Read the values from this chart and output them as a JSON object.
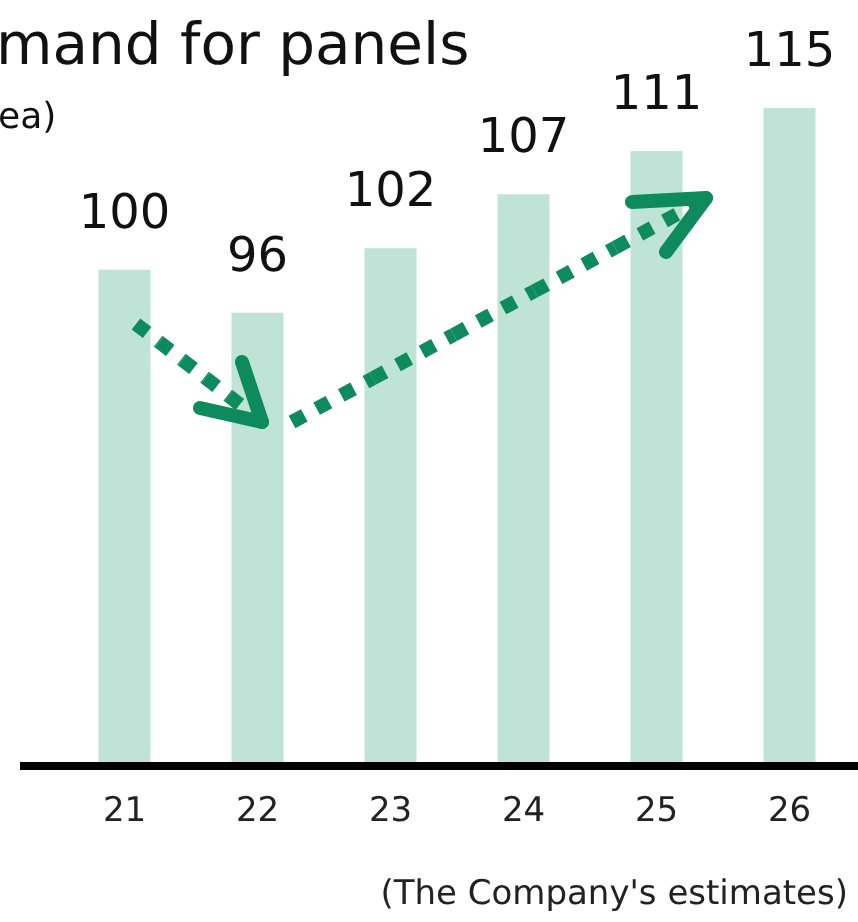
{
  "chart_data": {
    "type": "bar",
    "title": "mand for panels",
    "subtitle": "ea)",
    "categories": [
      "21",
      "22",
      "23",
      "24",
      "25",
      "26"
    ],
    "values": [
      100,
      96,
      102,
      107,
      111,
      115
    ],
    "color": "#bfe3d6",
    "ylim": [
      54,
      125
    ],
    "data_labels": true,
    "tick_labels": "x",
    "grid": false,
    "annotations": [
      "(The Company's estimates)"
    ]
  }
}
